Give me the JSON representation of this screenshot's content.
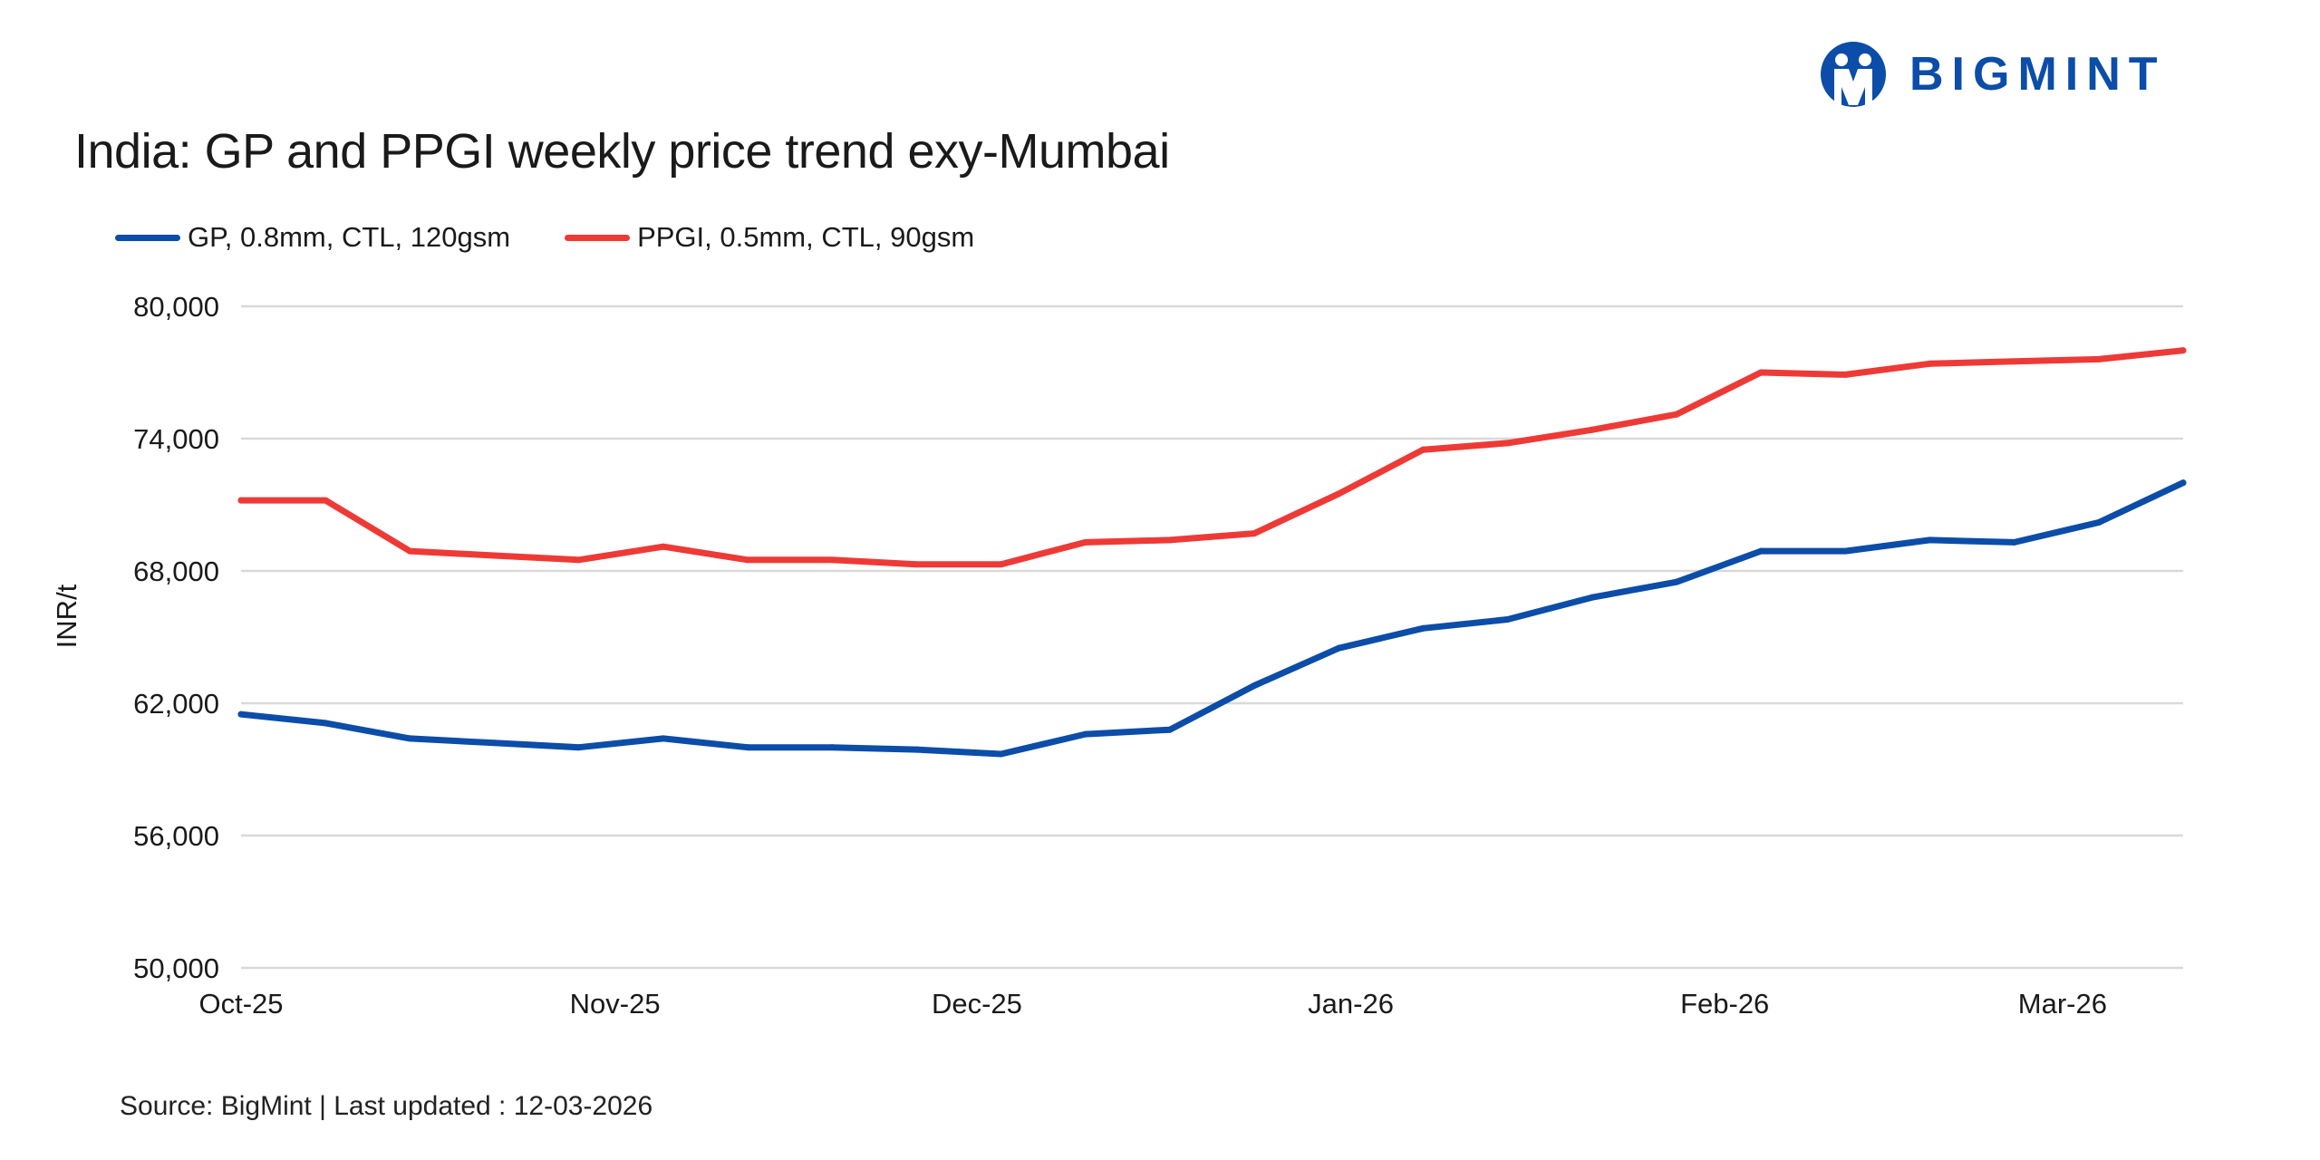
{
  "logo": {
    "text": "BIGMINT",
    "color": "#0b4da8"
  },
  "title": "India: GP and PPGI weekly price trend exy-Mumbai",
  "source": "Source: BigMint | Last updated : 12-03-2026",
  "chart_data": {
    "type": "line",
    "title": "India: GP and PPGI weekly price trend exy-Mumbai",
    "xlabel": "",
    "ylabel": "INR/t",
    "ylim": [
      50000,
      80000
    ],
    "yticks": [
      50000,
      56000,
      62000,
      68000,
      74000,
      80000
    ],
    "ytick_labels": [
      "50,000",
      "56,000",
      "62,000",
      "68,000",
      "74,000",
      "80,000"
    ],
    "xlim": [
      "2025-10-01",
      "2026-03-11"
    ],
    "xticks": [
      "2025-10-01",
      "2025-11-01",
      "2025-12-01",
      "2026-01-01",
      "2026-02-01",
      "2026-03-01"
    ],
    "xtick_labels": [
      "Oct-25",
      "Nov-25",
      "Dec-25",
      "Jan-26",
      "Feb-26",
      "Mar-26"
    ],
    "grid": true,
    "legend_position": "top-left",
    "x": [
      "2025-10-01",
      "2025-10-08",
      "2025-10-15",
      "2025-10-22",
      "2025-10-29",
      "2025-11-05",
      "2025-11-12",
      "2025-11-19",
      "2025-11-26",
      "2025-12-03",
      "2025-12-10",
      "2025-12-17",
      "2025-12-24",
      "2025-12-31",
      "2026-01-07",
      "2026-01-14",
      "2026-01-21",
      "2026-01-28",
      "2026-02-04",
      "2026-02-11",
      "2026-02-18",
      "2026-02-25",
      "2026-03-04",
      "2026-03-11"
    ],
    "series": [
      {
        "name": "GP, 0.8mm, CTL, 120gsm",
        "color": "#0b4da8",
        "values": [
          61500,
          61100,
          60400,
          60200,
          60000,
          60400,
          60000,
          60000,
          59900,
          59700,
          60600,
          60800,
          62800,
          64500,
          65400,
          65800,
          66800,
          67500,
          68900,
          68900,
          69400,
          69300,
          70200,
          72000
        ]
      },
      {
        "name": "PPGI, 0.5mm, CTL, 90gsm",
        "color": "#ee3a36",
        "values": [
          71200,
          71200,
          68900,
          68700,
          68500,
          69100,
          68500,
          68500,
          68300,
          68300,
          69300,
          69400,
          69700,
          71500,
          73500,
          73800,
          74400,
          75100,
          77000,
          76900,
          77400,
          77500,
          77600,
          78000
        ]
      }
    ]
  }
}
